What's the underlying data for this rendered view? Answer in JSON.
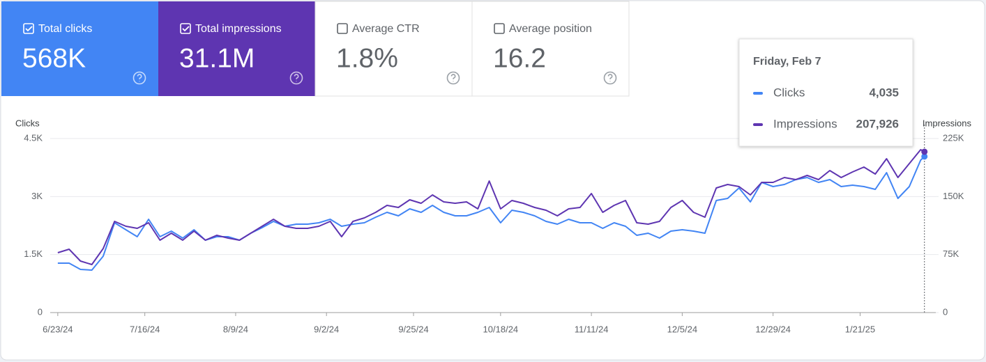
{
  "metrics": [
    {
      "label": "Total clicks",
      "value": "568K",
      "checked": true,
      "color": "#4285f4"
    },
    {
      "label": "Total impressions",
      "value": "31.1M",
      "checked": true,
      "color": "#5e35b1"
    },
    {
      "label": "Average CTR",
      "value": "1.8%",
      "checked": false,
      "color": "#ffffff"
    },
    {
      "label": "Average position",
      "value": "16.2",
      "checked": false,
      "color": "#ffffff"
    }
  ],
  "chart_data": {
    "type": "line",
    "ylabel": "Clicks",
    "y2label": "Impressions",
    "x": [
      "6/23/24",
      "6/26/24",
      "6/29/24",
      "7/2/24",
      "7/5/24",
      "7/8/24",
      "7/11/24",
      "7/14/24",
      "7/17/24",
      "7/20/24",
      "7/23/24",
      "7/26/24",
      "7/29/24",
      "8/1/24",
      "8/4/24",
      "8/7/24",
      "8/10/24",
      "8/13/24",
      "8/16/24",
      "8/19/24",
      "8/22/24",
      "8/25/24",
      "8/28/24",
      "8/31/24",
      "9/3/24",
      "9/6/24",
      "9/9/24",
      "9/12/24",
      "9/15/24",
      "9/18/24",
      "9/21/24",
      "9/24/24",
      "9/27/24",
      "9/30/24",
      "10/3/24",
      "10/6/24",
      "10/9/24",
      "10/12/24",
      "10/15/24",
      "10/18/24",
      "10/21/24",
      "10/24/24",
      "10/27/24",
      "10/30/24",
      "11/2/24",
      "11/5/24",
      "11/8/24",
      "11/11/24",
      "11/14/24",
      "11/17/24",
      "11/20/24",
      "11/23/24",
      "11/26/24",
      "11/29/24",
      "12/2/24",
      "12/5/24",
      "12/8/24",
      "12/11/24",
      "12/14/24",
      "12/17/24",
      "12/20/24",
      "12/23/24",
      "12/26/24",
      "12/29/24",
      "1/1/25",
      "1/4/25",
      "1/7/25",
      "1/10/25",
      "1/13/25",
      "1/16/25",
      "1/19/25",
      "1/22/25",
      "1/25/25",
      "1/28/25",
      "1/31/25",
      "2/3/25",
      "2/6/25",
      "2/7/25"
    ],
    "series": [
      {
        "name": "Clicks",
        "color": "#4285f4",
        "values": [
          1278,
          1278,
          1116,
          1098,
          1458,
          2322,
          2142,
          1962,
          2412,
          1962,
          2106,
          1926,
          2142,
          1872,
          1962,
          1962,
          1872,
          2052,
          2196,
          2358,
          2232,
          2286,
          2286,
          2322,
          2412,
          2232,
          2286,
          2322,
          2466,
          2592,
          2502,
          2682,
          2592,
          2772,
          2592,
          2502,
          2502,
          2592,
          2718,
          2322,
          2646,
          2592,
          2502,
          2358,
          2286,
          2412,
          2322,
          2322,
          2178,
          2322,
          2232,
          1998,
          2052,
          1926,
          2106,
          2142,
          2106,
          2052,
          2898,
          2952,
          3222,
          2862,
          3366,
          3258,
          3312,
          3438,
          3492,
          3366,
          3438,
          3258,
          3294,
          3258,
          3186,
          3618,
          2952,
          3258,
          3942,
          4035
        ]
      },
      {
        "name": "Impressions",
        "color": "#5e35b1",
        "axis": "y2",
        "values": [
          77400,
          81900,
          66600,
          62100,
          82800,
          117900,
          111600,
          108900,
          116100,
          93600,
          102600,
          93600,
          105300,
          93600,
          99900,
          96300,
          93600,
          102600,
          111600,
          120600,
          111600,
          108900,
          108900,
          111600,
          117900,
          98100,
          117900,
          122400,
          129600,
          138600,
          135900,
          145800,
          141300,
          152100,
          143100,
          141300,
          143100,
          134100,
          170100,
          134100,
          144900,
          141300,
          135900,
          132300,
          125100,
          134100,
          135900,
          153900,
          129600,
          138600,
          144900,
          116100,
          114300,
          117900,
          135900,
          144900,
          129600,
          123300,
          161100,
          165600,
          162900,
          152100,
          168300,
          168300,
          174600,
          171900,
          177300,
          171900,
          183600,
          174600,
          181800,
          188100,
          179100,
          198900,
          174600,
          192600,
          210600,
          207926
        ]
      }
    ],
    "xlim": [
      "6/21/24",
      "2/10/25"
    ],
    "xticks": [
      "6/23/24",
      "7/16/24",
      "8/9/24",
      "9/2/24",
      "9/25/24",
      "10/18/24",
      "11/11/24",
      "12/5/24",
      "12/29/24",
      "1/21/25"
    ],
    "ylim": [
      0,
      4500
    ],
    "yticks": [
      0,
      {
        "value": 1500,
        "label": "1.5K"
      },
      {
        "value": 3000,
        "label": "3K"
      },
      {
        "value": 4500,
        "label": "4.5K"
      }
    ],
    "y2lim": [
      0,
      225000
    ],
    "y2ticks": [
      0,
      {
        "value": 75000,
        "label": "75K"
      },
      {
        "value": 150000,
        "label": "150K"
      },
      {
        "value": 225000,
        "label": "225K"
      }
    ],
    "grid": true,
    "tooltip": {
      "title": "Friday, Feb 7",
      "value_labels": [
        "4,035",
        "207,926"
      ]
    }
  }
}
